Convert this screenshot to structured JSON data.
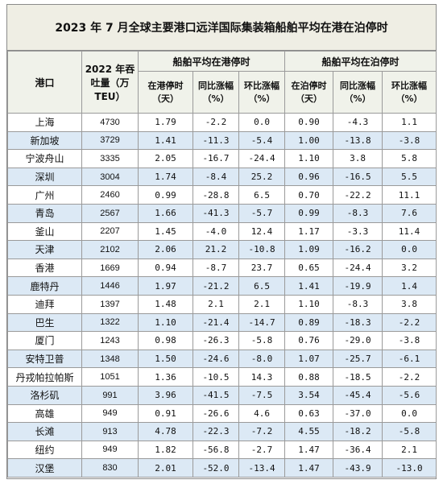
{
  "title": "2023 年 7 月全球主要港口远洋国际集装箱船舶平均在港在泊停时",
  "table": {
    "groups": [
      "船舶平均在港停时",
      "船舶平均在泊停时"
    ],
    "header": [
      "港口",
      "2022 年吞吐量（万 TEU）",
      "在港停时（天）",
      "同比涨幅（%）",
      "环比涨幅（%）",
      "在泊停时（天）",
      "同比涨幅（%）",
      "环比涨幅（%）"
    ],
    "rows": [
      [
        "上海",
        "4730",
        "1.79",
        "-2.2",
        "0.0",
        "0.90",
        "-4.3",
        "1.1"
      ],
      [
        "新加坡",
        "3729",
        "1.41",
        "-11.3",
        "-5.4",
        "1.00",
        "-13.8",
        "-3.8"
      ],
      [
        "宁波舟山",
        "3335",
        "2.05",
        "-16.7",
        "-24.4",
        "1.10",
        "3.8",
        "5.8"
      ],
      [
        "深圳",
        "3004",
        "1.74",
        "-8.4",
        "25.2",
        "0.96",
        "-16.5",
        "5.5"
      ],
      [
        "广州",
        "2460",
        "0.99",
        "-28.8",
        "6.5",
        "0.70",
        "-22.2",
        "11.1"
      ],
      [
        "青岛",
        "2567",
        "1.66",
        "-41.3",
        "-5.7",
        "0.99",
        "-8.3",
        "7.6"
      ],
      [
        "釜山",
        "2207",
        "1.45",
        "-4.0",
        "12.4",
        "1.17",
        "-3.3",
        "11.4"
      ],
      [
        "天津",
        "2102",
        "2.06",
        "21.2",
        "-10.8",
        "1.09",
        "-16.2",
        "0.0"
      ],
      [
        "香港",
        "1669",
        "0.94",
        "-8.7",
        "23.7",
        "0.65",
        "-24.4",
        "3.2"
      ],
      [
        "鹿特丹",
        "1446",
        "1.97",
        "-21.2",
        "6.5",
        "1.41",
        "-19.9",
        "1.4"
      ],
      [
        "迪拜",
        "1397",
        "1.48",
        "2.1",
        "2.1",
        "1.10",
        "-8.3",
        "3.8"
      ],
      [
        "巴生",
        "1322",
        "1.10",
        "-21.4",
        "-14.7",
        "0.89",
        "-18.3",
        "-2.2"
      ],
      [
        "厦门",
        "1243",
        "0.98",
        "-26.3",
        "-5.8",
        "0.76",
        "-29.0",
        "-3.8"
      ],
      [
        "安特卫普",
        "1348",
        "1.50",
        "-24.6",
        "-8.0",
        "1.07",
        "-25.7",
        "-6.1"
      ],
      [
        "丹戎帕拉帕斯",
        "1051",
        "1.36",
        "-10.5",
        "14.3",
        "0.88",
        "-18.5",
        "-2.2"
      ],
      [
        "洛杉矶",
        "991",
        "3.96",
        "-41.5",
        "-7.5",
        "3.54",
        "-45.4",
        "-5.6"
      ],
      [
        "高雄",
        "949",
        "0.91",
        "-26.6",
        "4.6",
        "0.63",
        "-37.0",
        "0.0"
      ],
      [
        "长滩",
        "913",
        "4.78",
        "-22.3",
        "-7.2",
        "4.55",
        "-18.2",
        "-5.8"
      ],
      [
        "纽约",
        "949",
        "1.82",
        "-56.8",
        "-2.7",
        "1.47",
        "-36.4",
        "2.1"
      ],
      [
        "汉堡",
        "830",
        "2.01",
        "-52.0",
        "-13.4",
        "1.47",
        "-43.9",
        "-13.0"
      ]
    ]
  }
}
